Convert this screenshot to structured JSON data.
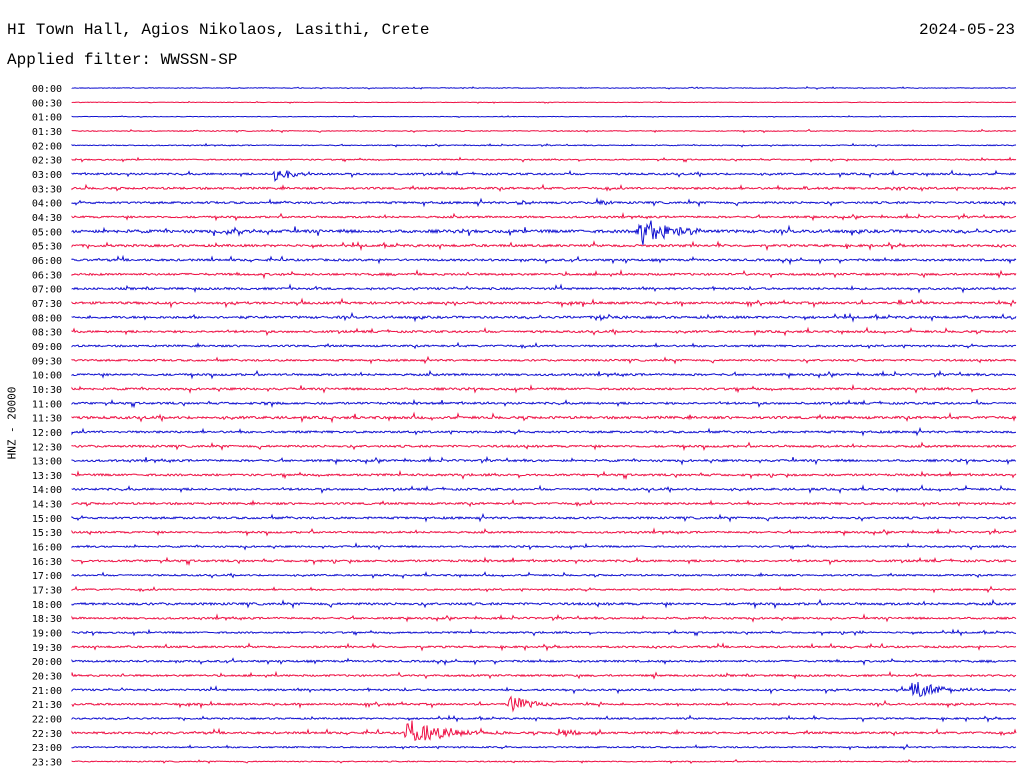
{
  "header": {
    "station": "HI Town Hall, Agios Nikolaos, Lasithi, Crete",
    "date": "2024-05-23",
    "filter": "Applied filter: WWSSN-SP"
  },
  "chart_data": {
    "type": "line",
    "title": "HI Town Hall, Agios Nikolaos, Lasithi, Crete",
    "ylabel": "HNZ - 20000",
    "xlabel": "",
    "grid": false,
    "colors": {
      "blue": "#1010d0",
      "red": "#ee1044"
    },
    "rows": [
      {
        "label": "00:00",
        "color": "blue",
        "noise": 0.35,
        "events": []
      },
      {
        "label": "00:30",
        "color": "red",
        "noise": 0.25,
        "events": []
      },
      {
        "label": "01:00",
        "color": "blue",
        "noise": 0.25,
        "events": []
      },
      {
        "label": "01:30",
        "color": "red",
        "noise": 0.45,
        "events": []
      },
      {
        "label": "02:00",
        "color": "blue",
        "noise": 0.45,
        "events": []
      },
      {
        "label": "02:30",
        "color": "red",
        "noise": 0.6,
        "events": []
      },
      {
        "label": "03:00",
        "color": "blue",
        "noise": 0.9,
        "events": [
          {
            "t": 0.215,
            "amp": 7,
            "dur": 0.02
          }
        ]
      },
      {
        "label": "03:30",
        "color": "red",
        "noise": 1.0,
        "events": [
          {
            "t": 0.775,
            "amp": 3,
            "dur": 0.01
          },
          {
            "t": 0.87,
            "amp": 3,
            "dur": 0.01
          }
        ]
      },
      {
        "label": "04:00",
        "color": "blue",
        "noise": 1.0,
        "events": [
          {
            "t": 0.475,
            "amp": 3,
            "dur": 0.01
          },
          {
            "t": 0.557,
            "amp": 5,
            "dur": 0.008
          }
        ]
      },
      {
        "label": "04:30",
        "color": "red",
        "noise": 0.9,
        "events": []
      },
      {
        "label": "05:00",
        "color": "blue",
        "noise": 1.4,
        "events": [
          {
            "t": 0.16,
            "amp": 4,
            "dur": 0.02
          },
          {
            "t": 0.6,
            "amp": 16,
            "dur": 0.03
          }
        ]
      },
      {
        "label": "05:30",
        "color": "red",
        "noise": 1.1,
        "events": []
      },
      {
        "label": "06:00",
        "color": "blue",
        "noise": 1.0,
        "events": []
      },
      {
        "label": "06:30",
        "color": "red",
        "noise": 1.0,
        "events": []
      },
      {
        "label": "07:00",
        "color": "blue",
        "noise": 1.0,
        "events": []
      },
      {
        "label": "07:30",
        "color": "red",
        "noise": 1.1,
        "events": []
      },
      {
        "label": "08:00",
        "color": "blue",
        "noise": 1.1,
        "events": [
          {
            "t": 0.56,
            "amp": 3,
            "dur": 0.01
          },
          {
            "t": 0.995,
            "amp": 4,
            "dur": 0.005
          }
        ]
      },
      {
        "label": "08:30",
        "color": "red",
        "noise": 1.0,
        "events": []
      },
      {
        "label": "09:00",
        "color": "blue",
        "noise": 0.9,
        "events": []
      },
      {
        "label": "09:30",
        "color": "red",
        "noise": 0.9,
        "events": []
      },
      {
        "label": "10:00",
        "color": "blue",
        "noise": 1.0,
        "events": []
      },
      {
        "label": "10:30",
        "color": "red",
        "noise": 1.0,
        "events": []
      },
      {
        "label": "11:00",
        "color": "blue",
        "noise": 1.0,
        "events": [
          {
            "t": 0.2,
            "amp": 3,
            "dur": 0.01
          }
        ]
      },
      {
        "label": "11:30",
        "color": "red",
        "noise": 1.2,
        "events": []
      },
      {
        "label": "12:00",
        "color": "blue",
        "noise": 1.0,
        "events": []
      },
      {
        "label": "12:30",
        "color": "red",
        "noise": 1.0,
        "events": []
      },
      {
        "label": "13:00",
        "color": "blue",
        "noise": 1.0,
        "events": []
      },
      {
        "label": "13:30",
        "color": "red",
        "noise": 1.0,
        "events": []
      },
      {
        "label": "14:00",
        "color": "blue",
        "noise": 1.0,
        "events": []
      },
      {
        "label": "14:30",
        "color": "red",
        "noise": 1.0,
        "events": []
      },
      {
        "label": "15:00",
        "color": "blue",
        "noise": 1.0,
        "events": []
      },
      {
        "label": "15:30",
        "color": "red",
        "noise": 0.9,
        "events": []
      },
      {
        "label": "16:00",
        "color": "blue",
        "noise": 0.8,
        "events": []
      },
      {
        "label": "16:30",
        "color": "red",
        "noise": 1.0,
        "events": []
      },
      {
        "label": "17:00",
        "color": "blue",
        "noise": 0.8,
        "events": []
      },
      {
        "label": "17:30",
        "color": "red",
        "noise": 0.8,
        "events": []
      },
      {
        "label": "18:00",
        "color": "blue",
        "noise": 1.1,
        "events": []
      },
      {
        "label": "18:30",
        "color": "red",
        "noise": 0.9,
        "events": []
      },
      {
        "label": "19:00",
        "color": "blue",
        "noise": 0.8,
        "events": [
          {
            "t": 0.83,
            "amp": 3,
            "dur": 0.008
          }
        ]
      },
      {
        "label": "19:30",
        "color": "red",
        "noise": 0.9,
        "events": []
      },
      {
        "label": "20:00",
        "color": "blue",
        "noise": 0.9,
        "events": []
      },
      {
        "label": "20:30",
        "color": "red",
        "noise": 0.9,
        "events": []
      },
      {
        "label": "21:00",
        "color": "blue",
        "noise": 0.9,
        "events": [
          {
            "t": 0.89,
            "amp": 10,
            "dur": 0.025
          }
        ]
      },
      {
        "label": "21:30",
        "color": "red",
        "noise": 0.9,
        "events": [
          {
            "t": 0.465,
            "amp": 9,
            "dur": 0.02
          }
        ]
      },
      {
        "label": "22:00",
        "color": "blue",
        "noise": 0.8,
        "events": []
      },
      {
        "label": "22:30",
        "color": "red",
        "noise": 1.0,
        "events": [
          {
            "t": 0.355,
            "amp": 14,
            "dur": 0.035
          },
          {
            "t": 0.515,
            "amp": 5,
            "dur": 0.015
          }
        ]
      },
      {
        "label": "23:00",
        "color": "blue",
        "noise": 0.7,
        "events": []
      },
      {
        "label": "23:30",
        "color": "red",
        "noise": 0.5,
        "events": []
      }
    ]
  }
}
